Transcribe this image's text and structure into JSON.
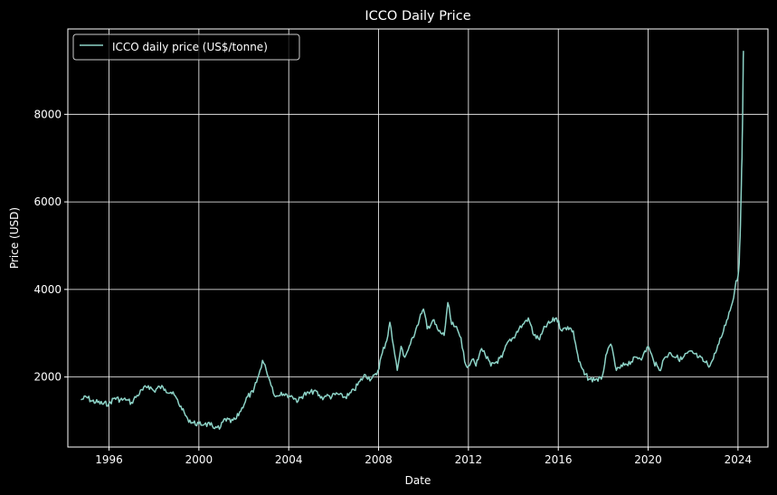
{
  "chart_data": {
    "type": "line",
    "title": "ICCO Daily Price",
    "xlabel": "Date",
    "ylabel": "Price (USD)",
    "xlim": [
      "1994-03-01",
      "2025-05-01"
    ],
    "ylim": [
      400,
      9950
    ],
    "x_ticks": [
      "1996",
      "2000",
      "2004",
      "2008",
      "2012",
      "2016",
      "2020",
      "2024"
    ],
    "y_ticks": [
      2000,
      4000,
      6000,
      8000
    ],
    "grid": true,
    "legend": "top-left",
    "colors": {
      "background": "#000000",
      "series": "#8dd3c7",
      "grid": "#ffffff",
      "text": "#ffffff"
    },
    "series": [
      {
        "name": "ICCO daily price (US$/tonne)",
        "points": [
          [
            "1994-10-01",
            1480
          ],
          [
            "1995-01-01",
            1540
          ],
          [
            "1995-04-01",
            1450
          ],
          [
            "1995-07-01",
            1420
          ],
          [
            "1995-10-01",
            1380
          ],
          [
            "1996-01-01",
            1400
          ],
          [
            "1996-04-01",
            1520
          ],
          [
            "1996-07-01",
            1480
          ],
          [
            "1996-10-01",
            1470
          ],
          [
            "1997-01-01",
            1420
          ],
          [
            "1997-04-01",
            1580
          ],
          [
            "1997-07-01",
            1700
          ],
          [
            "1997-10-01",
            1800
          ],
          [
            "1998-01-01",
            1680
          ],
          [
            "1998-04-01",
            1780
          ],
          [
            "1998-07-01",
            1720
          ],
          [
            "1998-10-01",
            1650
          ],
          [
            "1999-01-01",
            1520
          ],
          [
            "1999-04-01",
            1250
          ],
          [
            "1999-07-01",
            1050
          ],
          [
            "1999-10-01",
            950
          ],
          [
            "2000-01-01",
            930
          ],
          [
            "2000-04-01",
            920
          ],
          [
            "2000-07-01",
            900
          ],
          [
            "2000-10-01",
            860
          ],
          [
            "2000-12-01",
            810
          ],
          [
            "2001-03-01",
            1050
          ],
          [
            "2001-06-01",
            960
          ],
          [
            "2001-09-01",
            1050
          ],
          [
            "2001-12-01",
            1300
          ],
          [
            "2002-03-01",
            1550
          ],
          [
            "2002-06-01",
            1650
          ],
          [
            "2002-09-01",
            2050
          ],
          [
            "2002-11-01",
            2380
          ],
          [
            "2003-01-01",
            2150
          ],
          [
            "2003-03-01",
            1900
          ],
          [
            "2003-06-01",
            1550
          ],
          [
            "2003-09-01",
            1650
          ],
          [
            "2003-12-01",
            1600
          ],
          [
            "2004-03-01",
            1550
          ],
          [
            "2004-06-01",
            1450
          ],
          [
            "2004-09-01",
            1600
          ],
          [
            "2004-12-01",
            1620
          ],
          [
            "2005-03-01",
            1700
          ],
          [
            "2005-06-01",
            1520
          ],
          [
            "2005-09-01",
            1560
          ],
          [
            "2005-12-01",
            1550
          ],
          [
            "2006-03-01",
            1620
          ],
          [
            "2006-06-01",
            1530
          ],
          [
            "2006-09-01",
            1580
          ],
          [
            "2006-12-01",
            1700
          ],
          [
            "2007-03-01",
            1900
          ],
          [
            "2007-06-01",
            2050
          ],
          [
            "2007-09-01",
            1950
          ],
          [
            "2007-12-01",
            2050
          ],
          [
            "2008-03-01",
            2550
          ],
          [
            "2008-06-01",
            2950
          ],
          [
            "2008-07-01",
            3250
          ],
          [
            "2008-09-01",
            2700
          ],
          [
            "2008-11-01",
            2150
          ],
          [
            "2009-01-01",
            2700
          ],
          [
            "2009-03-01",
            2450
          ],
          [
            "2009-06-01",
            2750
          ],
          [
            "2009-09-01",
            3100
          ],
          [
            "2009-12-01",
            3450
          ],
          [
            "2010-01-01",
            3550
          ],
          [
            "2010-03-01",
            3100
          ],
          [
            "2010-06-01",
            3300
          ],
          [
            "2010-09-01",
            3050
          ],
          [
            "2010-12-01",
            2950
          ],
          [
            "2011-02-01",
            3700
          ],
          [
            "2011-04-01",
            3200
          ],
          [
            "2011-06-01",
            3150
          ],
          [
            "2011-09-01",
            2900
          ],
          [
            "2011-11-01",
            2350
          ],
          [
            "2012-01-01",
            2250
          ],
          [
            "2012-03-01",
            2400
          ],
          [
            "2012-05-01",
            2250
          ],
          [
            "2012-08-01",
            2650
          ],
          [
            "2012-10-01",
            2500
          ],
          [
            "2013-01-01",
            2250
          ],
          [
            "2013-04-01",
            2350
          ],
          [
            "2013-07-01",
            2450
          ],
          [
            "2013-10-01",
            2800
          ],
          [
            "2014-01-01",
            2900
          ],
          [
            "2014-04-01",
            3100
          ],
          [
            "2014-06-01",
            3200
          ],
          [
            "2014-09-01",
            3350
          ],
          [
            "2014-12-01",
            2950
          ],
          [
            "2015-03-01",
            2850
          ],
          [
            "2015-06-01",
            3150
          ],
          [
            "2015-09-01",
            3250
          ],
          [
            "2015-12-01",
            3350
          ],
          [
            "2016-03-01",
            3050
          ],
          [
            "2016-06-01",
            3150
          ],
          [
            "2016-09-01",
            3050
          ],
          [
            "2016-12-01",
            2350
          ],
          [
            "2017-03-01",
            2050
          ],
          [
            "2017-06-01",
            1950
          ],
          [
            "2017-09-01",
            1950
          ],
          [
            "2017-12-01",
            1950
          ],
          [
            "2018-03-01",
            2550
          ],
          [
            "2018-05-01",
            2750
          ],
          [
            "2018-08-01",
            2150
          ],
          [
            "2018-10-01",
            2200
          ],
          [
            "2019-01-01",
            2300
          ],
          [
            "2019-04-01",
            2350
          ],
          [
            "2019-07-01",
            2450
          ],
          [
            "2019-10-01",
            2450
          ],
          [
            "2020-01-01",
            2700
          ],
          [
            "2020-04-01",
            2350
          ],
          [
            "2020-07-01",
            2150
          ],
          [
            "2020-10-01",
            2450
          ],
          [
            "2021-01-01",
            2550
          ],
          [
            "2021-04-01",
            2450
          ],
          [
            "2021-07-01",
            2400
          ],
          [
            "2021-10-01",
            2550
          ],
          [
            "2022-01-01",
            2550
          ],
          [
            "2022-04-01",
            2450
          ],
          [
            "2022-07-01",
            2350
          ],
          [
            "2022-10-01",
            2250
          ],
          [
            "2023-01-01",
            2550
          ],
          [
            "2023-04-01",
            2900
          ],
          [
            "2023-07-01",
            3300
          ],
          [
            "2023-10-01",
            3700
          ],
          [
            "2023-12-01",
            4200
          ],
          [
            "2024-01-01",
            4300
          ],
          [
            "2024-01-20",
            4600
          ],
          [
            "2024-02-05",
            5200
          ],
          [
            "2024-02-15",
            5800
          ],
          [
            "2024-02-25",
            6400
          ],
          [
            "2024-03-05",
            7000
          ],
          [
            "2024-03-12",
            7700
          ],
          [
            "2024-03-18",
            8300
          ],
          [
            "2024-03-24",
            9000
          ],
          [
            "2024-03-28",
            9450
          ]
        ]
      }
    ]
  }
}
